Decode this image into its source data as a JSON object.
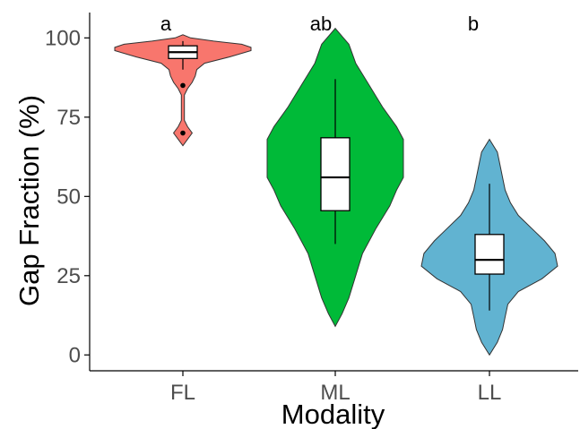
{
  "chart_data": {
    "type": "violin",
    "xlabel": "Modality",
    "ylabel": "Gap Fraction (%)",
    "ylim": [
      -5,
      108
    ],
    "yticks": [
      0,
      25,
      50,
      75,
      100
    ],
    "ytick_labels": [
      "0",
      "25",
      "50",
      "75",
      "100"
    ],
    "grid": false,
    "legend": "none",
    "categories": [
      "FL",
      "ML",
      "LL"
    ],
    "groups": [
      {
        "category": "FL",
        "color": "#f8766d",
        "significance": "a",
        "box": {
          "min": 90,
          "q1": 93.5,
          "median": 95.5,
          "q3": 97.5,
          "max": 99
        },
        "outliers": [
          85,
          70
        ],
        "density": [
          [
            66,
            0
          ],
          [
            68,
            3
          ],
          [
            70,
            6
          ],
          [
            72,
            3
          ],
          [
            74,
            1
          ],
          [
            78,
            1
          ],
          [
            82,
            1
          ],
          [
            84,
            3
          ],
          [
            86,
            6
          ],
          [
            88,
            8
          ],
          [
            90,
            9
          ],
          [
            92,
            14
          ],
          [
            94,
            30
          ],
          [
            96,
            44
          ],
          [
            97,
            44
          ],
          [
            98,
            38
          ],
          [
            99,
            20
          ],
          [
            100,
            5
          ],
          [
            101,
            0
          ]
        ]
      },
      {
        "category": "ML",
        "color": "#00ba38",
        "significance": "ab",
        "box": {
          "min": 35,
          "q1": 45.5,
          "median": 56,
          "q3": 68.5,
          "max": 87
        },
        "outliers": [],
        "density": [
          [
            9,
            0
          ],
          [
            13,
            1
          ],
          [
            18,
            2
          ],
          [
            25,
            3
          ],
          [
            32,
            4
          ],
          [
            40,
            6
          ],
          [
            47,
            8
          ],
          [
            52,
            9
          ],
          [
            56,
            10
          ],
          [
            62,
            10
          ],
          [
            68,
            10
          ],
          [
            72,
            9
          ],
          [
            78,
            7
          ],
          [
            85,
            5
          ],
          [
            92,
            3
          ],
          [
            98,
            2
          ],
          [
            103,
            0
          ]
        ]
      },
      {
        "category": "LL",
        "color": "#61b3d1",
        "significance": "b",
        "box": {
          "min": 14,
          "q1": 25.5,
          "median": 30,
          "q3": 38,
          "max": 54
        },
        "outliers": [],
        "density": [
          [
            0,
            0
          ],
          [
            4,
            3
          ],
          [
            8,
            5
          ],
          [
            12,
            6
          ],
          [
            16,
            7
          ],
          [
            20,
            11
          ],
          [
            24,
            20
          ],
          [
            28,
            26
          ],
          [
            32,
            25
          ],
          [
            36,
            21
          ],
          [
            40,
            16
          ],
          [
            44,
            11
          ],
          [
            48,
            8
          ],
          [
            52,
            6
          ],
          [
            56,
            5
          ],
          [
            60,
            4
          ],
          [
            64,
            3
          ],
          [
            68,
            0
          ]
        ]
      }
    ]
  }
}
